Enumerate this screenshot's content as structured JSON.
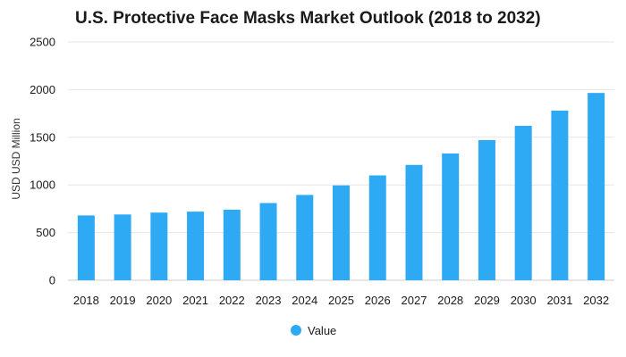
{
  "chart_data": {
    "type": "bar",
    "title": "U.S. Protective Face Masks Market Outlook (2018 to 2032)",
    "xlabel": "",
    "ylabel": "USD USD Million",
    "categories": [
      "2018",
      "2019",
      "2020",
      "2021",
      "2022",
      "2023",
      "2024",
      "2025",
      "2026",
      "2027",
      "2028",
      "2029",
      "2030",
      "2031",
      "2032"
    ],
    "series": [
      {
        "name": "Value",
        "color": "#2eaaf5",
        "values": [
          680,
          690,
          710,
          720,
          740,
          810,
          895,
          995,
          1100,
          1210,
          1330,
          1470,
          1620,
          1780,
          1965
        ]
      }
    ],
    "yticks": [
      "0",
      "500",
      "1000",
      "1500",
      "2000",
      "2500"
    ],
    "ylim": [
      0,
      2500
    ],
    "grid": true,
    "legend_position": "bottom-center"
  }
}
